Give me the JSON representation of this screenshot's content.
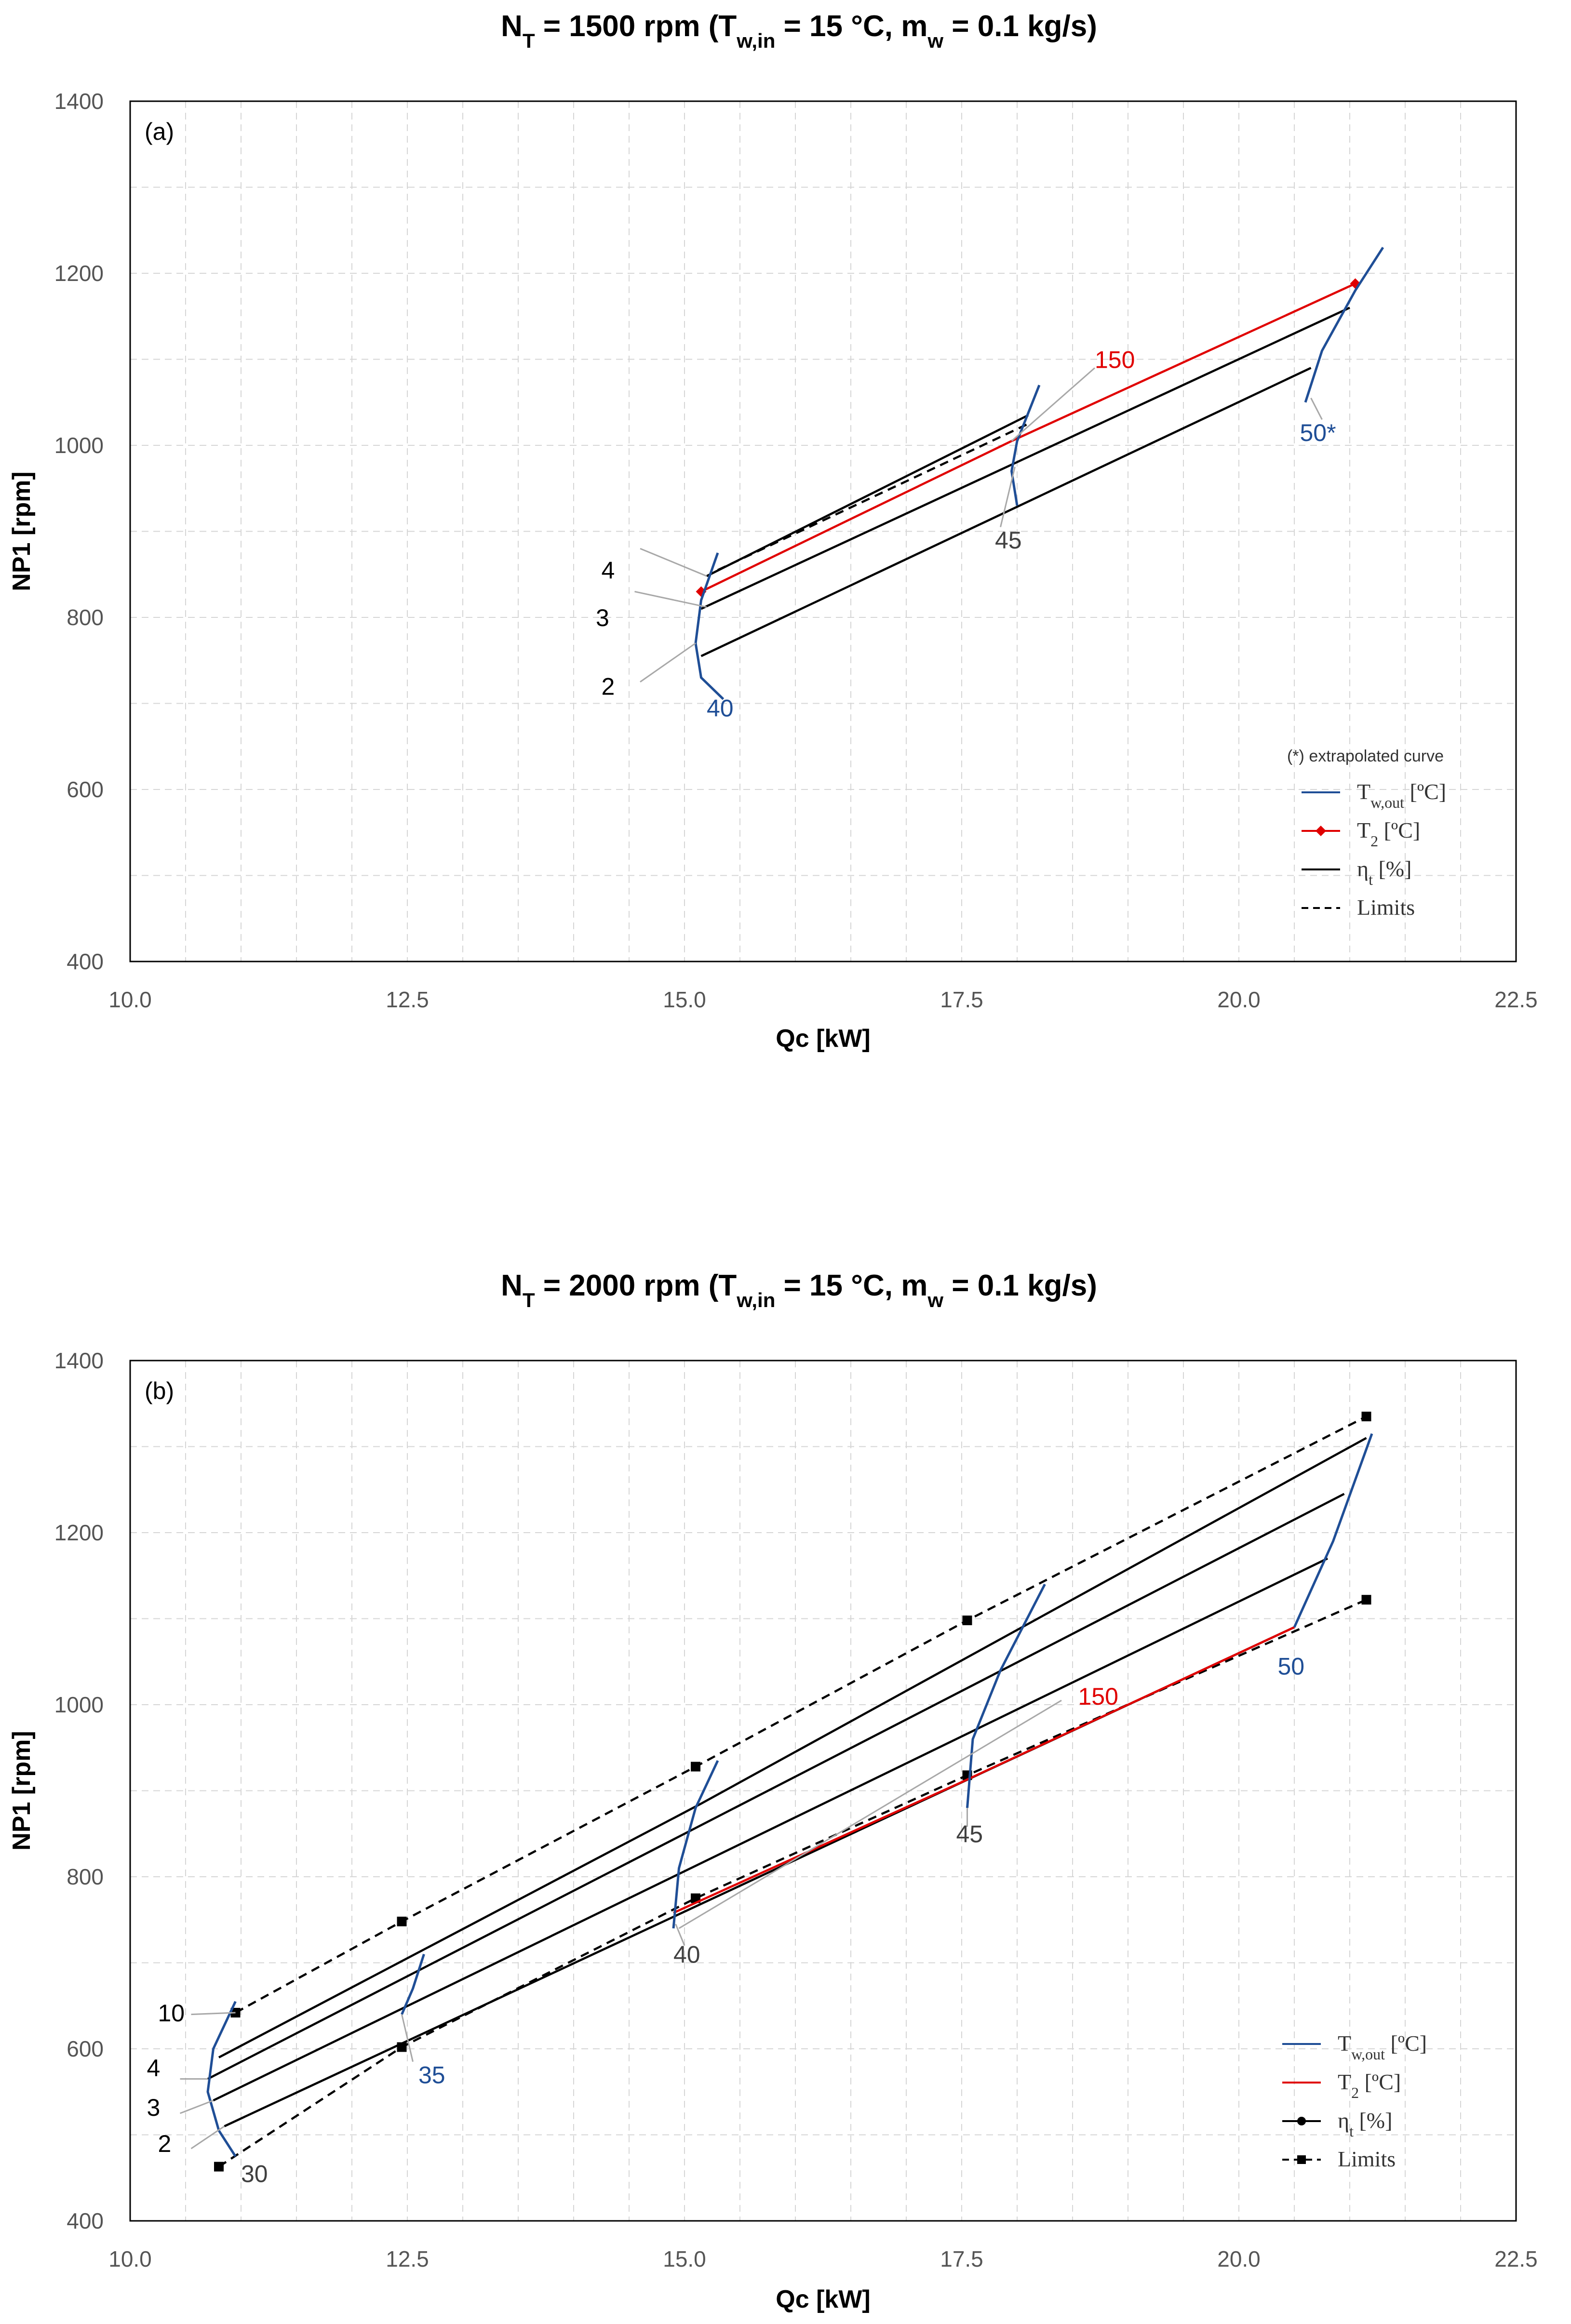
{
  "chart_data": [
    {
      "id": "a",
      "type": "line",
      "title": {
        "main": "N",
        "main_sub": "T",
        "mid": " = 1500 rpm (T",
        "mid_sub": "w,in",
        "end": " = 15 °C, m",
        "end_sub": "w",
        "tail": " = 0.1 kg/s)"
      },
      "panel_label": "(a)",
      "xlabel": "Qc [kW]",
      "ylabel": "NP1 [rpm]",
      "xlim": [
        10.0,
        22.5
      ],
      "ylim": [
        400,
        1400
      ],
      "xticks": [
        "10.0",
        "12.5",
        "15.0",
        "17.5",
        "20.0",
        "22.5"
      ],
      "yticks": [
        "400",
        "600",
        "800",
        "1000",
        "1200",
        "1400"
      ],
      "grid": true,
      "legend": {
        "position": "bottom-right",
        "note": "(*)  extrapolated  curve",
        "entries": [
          {
            "label": "T",
            "sub": "w,out",
            "unit": " [ºC]",
            "style": "blue"
          },
          {
            "label": "T",
            "sub": "2",
            "unit": " [ºC]",
            "style": "red-diamond"
          },
          {
            "label": "η",
            "sub": "t",
            "unit": " [%]",
            "style": "black"
          },
          {
            "label": "Limits",
            "sub": "",
            "unit": "",
            "style": "black-dashed"
          }
        ]
      },
      "series": [
        {
          "name": "eta 2",
          "group": "eta",
          "points": [
            [
              15.15,
              755
            ],
            [
              20.65,
              1090
            ]
          ]
        },
        {
          "name": "eta 3",
          "group": "eta",
          "points": [
            [
              15.15,
              810
            ],
            [
              21.0,
              1160
            ]
          ]
        },
        {
          "name": "eta 4",
          "group": "eta",
          "points": [
            [
              15.2,
              848
            ],
            [
              18.1,
              1035
            ]
          ]
        },
        {
          "name": "limit",
          "group": "limit",
          "points": [
            [
              15.3,
              855
            ],
            [
              18.1,
              1025
            ]
          ]
        },
        {
          "name": "T2 150",
          "group": "t2",
          "points": [
            [
              15.15,
              830
            ],
            [
              17.95,
              1005
            ],
            [
              21.05,
              1188
            ]
          ]
        },
        {
          "name": "Tw,out 40",
          "group": "tw",
          "points": [
            [
              15.3,
              875
            ],
            [
              15.15,
              820
            ],
            [
              15.1,
              770
            ],
            [
              15.15,
              730
            ],
            [
              15.35,
              705
            ]
          ]
        },
        {
          "name": "Tw,out 45",
          "group": "tw",
          "points": [
            [
              18.2,
              1070
            ],
            [
              18.0,
              1005
            ],
            [
              17.95,
              970
            ],
            [
              18.0,
              930
            ]
          ]
        },
        {
          "name": "Tw,out 50*",
          "group": "tw",
          "points": [
            [
              21.3,
              1230
            ],
            [
              21.05,
              1180
            ],
            [
              20.75,
              1110
            ],
            [
              20.6,
              1050
            ]
          ]
        }
      ],
      "annotations": [
        {
          "text": "4",
          "color": "#000000",
          "x": 14.25,
          "y": 845
        },
        {
          "text": "3",
          "color": "#000000",
          "x": 14.2,
          "y": 790
        },
        {
          "text": "2",
          "color": "#000000",
          "x": 14.25,
          "y": 710
        },
        {
          "text": "40",
          "color": "#1F4E96",
          "x": 15.2,
          "y": 685
        },
        {
          "text": "45",
          "color": "#404040",
          "x": 17.8,
          "y": 880
        },
        {
          "text": "50*",
          "color": "#1F4E96",
          "x": 20.55,
          "y": 1005
        },
        {
          "text": "150",
          "color": "#E00000",
          "x": 18.7,
          "y": 1090
        }
      ]
    },
    {
      "id": "b",
      "type": "line",
      "title": {
        "main": "N",
        "main_sub": "T",
        "mid": " = 2000 rpm (T",
        "mid_sub": "w,in",
        "end": " = 15 °C, m",
        "end_sub": "w",
        "tail": " = 0.1 kg/s)"
      },
      "panel_label": "(b)",
      "xlabel": "Qc [kW]",
      "ylabel": "NP1 [rpm]",
      "xlim": [
        10.0,
        22.5
      ],
      "ylim": [
        400,
        1400
      ],
      "xticks": [
        "10.0",
        "12.5",
        "15.0",
        "17.5",
        "20.0",
        "22.5"
      ],
      "yticks": [
        "400",
        "600",
        "800",
        "1000",
        "1200",
        "1400"
      ],
      "grid": true,
      "legend": {
        "position": "bottom-right",
        "note": "",
        "entries": [
          {
            "label": "T",
            "sub": "w,out",
            "unit": " [ºC]",
            "style": "blue"
          },
          {
            "label": "T",
            "sub": "2",
            "unit": " [ºC]",
            "style": "red"
          },
          {
            "label": "η",
            "sub": "t",
            "unit": " [%]",
            "style": "black-dot"
          },
          {
            "label": "Limits",
            "sub": "",
            "unit": "",
            "style": "black-dashed-square"
          }
        ]
      },
      "series": [
        {
          "name": "eta 10",
          "group": "eta",
          "points": [
            [
              10.8,
              590
            ],
            [
              15.15,
              885
            ],
            [
              21.15,
              1310
            ]
          ]
        },
        {
          "name": "eta 4",
          "group": "eta",
          "points": [
            [
              10.7,
              565
            ],
            [
              15.0,
              850
            ],
            [
              20.95,
              1245
            ]
          ]
        },
        {
          "name": "eta 3",
          "group": "eta",
          "points": [
            [
              10.75,
              540
            ],
            [
              20.8,
              1170
            ]
          ]
        },
        {
          "name": "eta 2",
          "group": "eta",
          "points": [
            [
              10.85,
              510
            ],
            [
              20.5,
              1090
            ]
          ]
        },
        {
          "name": "limit upper",
          "group": "limit",
          "points": [
            [
              10.95,
              642
            ],
            [
              12.45,
              748
            ],
            [
              15.1,
              928
            ],
            [
              17.55,
              1098
            ],
            [
              21.15,
              1335
            ]
          ]
        },
        {
          "name": "limit lower",
          "group": "limit",
          "points": [
            [
              10.8,
              463
            ],
            [
              12.45,
              602
            ],
            [
              15.1,
              775
            ],
            [
              17.55,
              918
            ],
            [
              21.15,
              1122
            ]
          ]
        },
        {
          "name": "T2 150",
          "group": "t2",
          "points": [
            [
              14.9,
              758
            ],
            [
              17.5,
              910
            ],
            [
              20.5,
              1090
            ]
          ]
        },
        {
          "name": "Tw,out 30",
          "group": "tw",
          "points": [
            [
              10.95,
              655
            ],
            [
              10.75,
              600
            ],
            [
              10.7,
              550
            ],
            [
              10.8,
              505
            ],
            [
              10.95,
              475
            ]
          ]
        },
        {
          "name": "Tw,out 35",
          "group": "tw",
          "points": [
            [
              12.65,
              710
            ],
            [
              12.55,
              670
            ],
            [
              12.45,
              640
            ]
          ]
        },
        {
          "name": "Tw,out 40",
          "group": "tw",
          "points": [
            [
              15.3,
              935
            ],
            [
              15.1,
              880
            ],
            [
              14.95,
              810
            ],
            [
              14.9,
              740
            ]
          ]
        },
        {
          "name": "Tw,out 45",
          "group": "tw",
          "points": [
            [
              18.25,
              1140
            ],
            [
              17.85,
              1040
            ],
            [
              17.6,
              960
            ],
            [
              17.55,
              880
            ]
          ]
        },
        {
          "name": "Tw,out 50",
          "group": "tw",
          "points": [
            [
              21.2,
              1315
            ],
            [
              20.85,
              1190
            ],
            [
              20.5,
              1090
            ]
          ]
        }
      ],
      "annotations": [
        {
          "text": "10",
          "color": "#000000",
          "x": 10.25,
          "y": 632
        },
        {
          "text": "4",
          "color": "#000000",
          "x": 10.15,
          "y": 568
        },
        {
          "text": "3",
          "color": "#000000",
          "x": 10.15,
          "y": 522
        },
        {
          "text": "2",
          "color": "#000000",
          "x": 10.25,
          "y": 480
        },
        {
          "text": "30",
          "color": "#404040",
          "x": 11.0,
          "y": 445
        },
        {
          "text": "35",
          "color": "#1F4E96",
          "x": 12.6,
          "y": 560
        },
        {
          "text": "40",
          "color": "#404040",
          "x": 14.9,
          "y": 700
        },
        {
          "text": "45",
          "color": "#404040",
          "x": 17.45,
          "y": 840
        },
        {
          "text": "50",
          "color": "#1F4E96",
          "x": 20.35,
          "y": 1035
        },
        {
          "text": "150",
          "color": "#E00000",
          "x": 18.55,
          "y": 1000
        }
      ]
    }
  ]
}
